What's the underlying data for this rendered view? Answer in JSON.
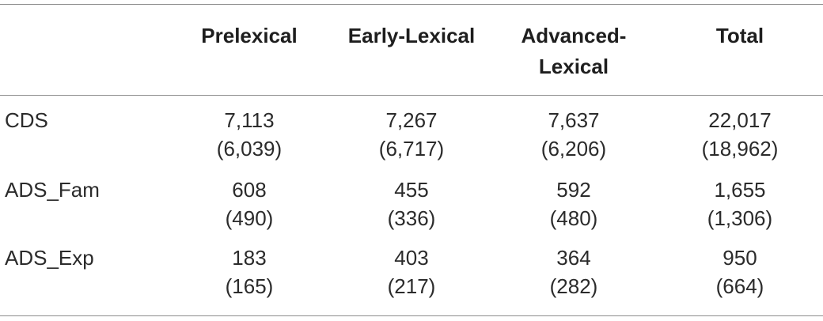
{
  "table": {
    "headers": [
      "",
      "Prelexical",
      "Early-Lexical",
      "Advanced-\nLexical",
      "Total"
    ],
    "header_lines": {
      "advanced_line1": "Advanced-",
      "advanced_line2": "Lexical"
    },
    "rows": [
      {
        "label": "CDS",
        "cells": [
          {
            "value": "7,113",
            "sub": "(6,039)"
          },
          {
            "value": "7,267",
            "sub": "(6,717)"
          },
          {
            "value": "7,637",
            "sub": "(6,206)"
          },
          {
            "value": "22,017",
            "sub": "(18,962)"
          }
        ]
      },
      {
        "label": "ADS_Fam",
        "cells": [
          {
            "value": "608",
            "sub": "(490)"
          },
          {
            "value": "455",
            "sub": "(336)"
          },
          {
            "value": "592",
            "sub": "(480)"
          },
          {
            "value": "1,655",
            "sub": "(1,306)"
          }
        ]
      },
      {
        "label": "ADS_Exp",
        "cells": [
          {
            "value": "183",
            "sub": "(165)"
          },
          {
            "value": "403",
            "sub": "(217)"
          },
          {
            "value": "364",
            "sub": "(282)"
          },
          {
            "value": "950",
            "sub": "(664)"
          }
        ]
      }
    ]
  }
}
